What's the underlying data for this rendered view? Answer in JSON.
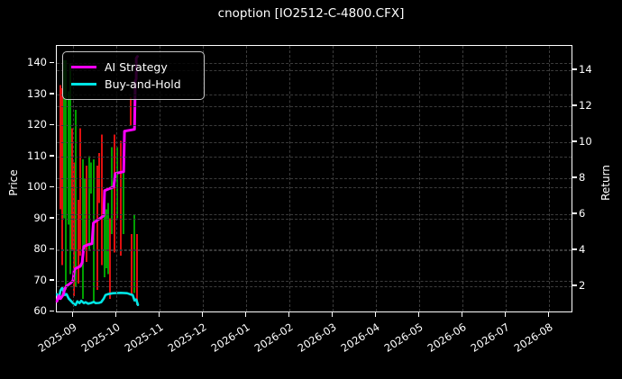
{
  "window": {
    "title": "cnoption [IO2512-C-4800.CFX]"
  },
  "legend": {
    "items": [
      {
        "label": "AI Strategy",
        "color": "#ff00ff"
      },
      {
        "label": "Buy-and-Hold",
        "color": "#00e5e5"
      }
    ]
  },
  "chart_data": {
    "type": "candlestick+line",
    "title": "cnoption [IO2512-C-4800.CFX]",
    "grid": {
      "on": true,
      "color": "#3c3c3c",
      "style": "dashed"
    },
    "colors": {
      "background": "#000000",
      "text": "#ffffff",
      "candle_up": "#00a000",
      "candle_down": "#e01010"
    },
    "x_axis": {
      "unit": "month",
      "tick_labels": [
        "2025-09",
        "2025-10",
        "2025-11",
        "2025-12",
        "2026-01",
        "2026-02",
        "2026-03",
        "2026-04",
        "2026-05",
        "2026-06",
        "2026-07",
        "2026-08"
      ],
      "range_month_units": [
        -0.375,
        11.52
      ],
      "data_extent_note": "data only spans late 2025-08 through late 2025-10"
    },
    "left_axis": {
      "label": "Price",
      "ticks": [
        60,
        70,
        80,
        90,
        100,
        110,
        120,
        130,
        140
      ],
      "range": [
        60,
        145.6
      ]
    },
    "right_axis": {
      "label": "Return",
      "ticks": [
        2,
        4,
        6,
        8,
        10,
        12,
        14
      ],
      "range": [
        0.585,
        15.335
      ]
    },
    "candles_format": [
      "x_month_units_from_2025-09",
      "low_price",
      "high_price",
      "u=up-green d=down-red"
    ],
    "candles": [
      [
        -0.29,
        93,
        133,
        "d"
      ],
      [
        -0.25,
        75,
        132,
        "d"
      ],
      [
        -0.21,
        90,
        141,
        "u"
      ],
      [
        -0.17,
        67,
        141,
        "u"
      ],
      [
        -0.1,
        88,
        131,
        "u"
      ],
      [
        -0.06,
        72,
        140,
        "u"
      ],
      [
        -0.02,
        80,
        119,
        "d"
      ],
      [
        0.02,
        65,
        108,
        "d"
      ],
      [
        0.06,
        68,
        125,
        "u"
      ],
      [
        0.13,
        69,
        96,
        "d"
      ],
      [
        0.17,
        78,
        119,
        "d"
      ],
      [
        0.23,
        64,
        109,
        "u"
      ],
      [
        0.27,
        80,
        103,
        "u"
      ],
      [
        0.31,
        76,
        107,
        "d"
      ],
      [
        0.38,
        80,
        110,
        "u"
      ],
      [
        0.42,
        98,
        108,
        "u"
      ],
      [
        0.48,
        63,
        109,
        "u"
      ],
      [
        0.56,
        67,
        107,
        "d"
      ],
      [
        0.6,
        95,
        111,
        "d"
      ],
      [
        0.67,
        75,
        117,
        "d"
      ],
      [
        0.73,
        71,
        95,
        "u"
      ],
      [
        0.77,
        74,
        93,
        "u"
      ],
      [
        0.81,
        72,
        95,
        "u"
      ],
      [
        0.85,
        64,
        90,
        "d"
      ],
      [
        0.9,
        85,
        113,
        "u"
      ],
      [
        0.96,
        79,
        117,
        "d"
      ],
      [
        1.02,
        90,
        113,
        "u"
      ],
      [
        1.1,
        78,
        115,
        "d"
      ],
      [
        1.17,
        85,
        105,
        "u"
      ],
      [
        1.33,
        120,
        129,
        "d"
      ],
      [
        1.35,
        65,
        85,
        "d"
      ],
      [
        1.42,
        66,
        91,
        "u"
      ],
      [
        1.48,
        62,
        85,
        "d"
      ]
    ],
    "series": [
      {
        "name": "AI Strategy",
        "color": "#ff00ff",
        "axis": "right",
        "line_width": 3,
        "points": [
          [
            -0.37,
            1.15
          ],
          [
            -0.33,
            1.45
          ],
          [
            -0.29,
            1.3
          ],
          [
            -0.23,
            1.5
          ],
          [
            -0.19,
            1.85
          ],
          [
            -0.15,
            2.0
          ],
          [
            -0.06,
            2.15
          ],
          [
            0.0,
            2.3
          ],
          [
            0.03,
            2.9
          ],
          [
            0.08,
            3.0
          ],
          [
            0.17,
            3.1
          ],
          [
            0.21,
            3.3
          ],
          [
            0.25,
            4.2
          ],
          [
            0.35,
            4.3
          ],
          [
            0.44,
            4.35
          ],
          [
            0.47,
            5.5
          ],
          [
            0.56,
            5.65
          ],
          [
            0.65,
            5.8
          ],
          [
            0.71,
            5.9
          ],
          [
            0.73,
            7.3
          ],
          [
            0.83,
            7.4
          ],
          [
            0.94,
            7.5
          ],
          [
            0.98,
            8.25
          ],
          [
            1.17,
            8.35
          ],
          [
            1.19,
            10.6
          ],
          [
            1.42,
            10.7
          ],
          [
            1.44,
            13.4
          ],
          [
            1.46,
            13.5
          ],
          [
            1.46,
            14.65
          ],
          [
            1.49,
            14.75
          ]
        ]
      },
      {
        "name": "Buy-and-Hold",
        "color": "#00e5e5",
        "axis": "right",
        "line_width": 2.6,
        "points": [
          [
            -0.37,
            1.55
          ],
          [
            -0.33,
            1.3
          ],
          [
            -0.29,
            1.75
          ],
          [
            -0.25,
            1.9
          ],
          [
            -0.19,
            1.5
          ],
          [
            -0.15,
            1.55
          ],
          [
            -0.1,
            1.3
          ],
          [
            -0.04,
            1.15
          ],
          [
            0.02,
            1.0
          ],
          [
            0.06,
            0.95
          ],
          [
            0.1,
            1.15
          ],
          [
            0.15,
            1.05
          ],
          [
            0.19,
            1.18
          ],
          [
            0.25,
            1.05
          ],
          [
            0.29,
            1.1
          ],
          [
            0.35,
            1.02
          ],
          [
            0.42,
            1.06
          ],
          [
            0.48,
            1.12
          ],
          [
            0.52,
            1.05
          ],
          [
            0.6,
            1.06
          ],
          [
            0.65,
            1.1
          ],
          [
            0.71,
            1.3
          ],
          [
            0.75,
            1.5
          ],
          [
            0.81,
            1.55
          ],
          [
            0.92,
            1.6
          ],
          [
            1.1,
            1.62
          ],
          [
            1.25,
            1.6
          ],
          [
            1.31,
            1.55
          ],
          [
            1.38,
            1.5
          ],
          [
            1.42,
            1.2
          ],
          [
            1.46,
            1.25
          ],
          [
            1.5,
            0.95
          ]
        ]
      }
    ],
    "legend_position": "upper left"
  }
}
